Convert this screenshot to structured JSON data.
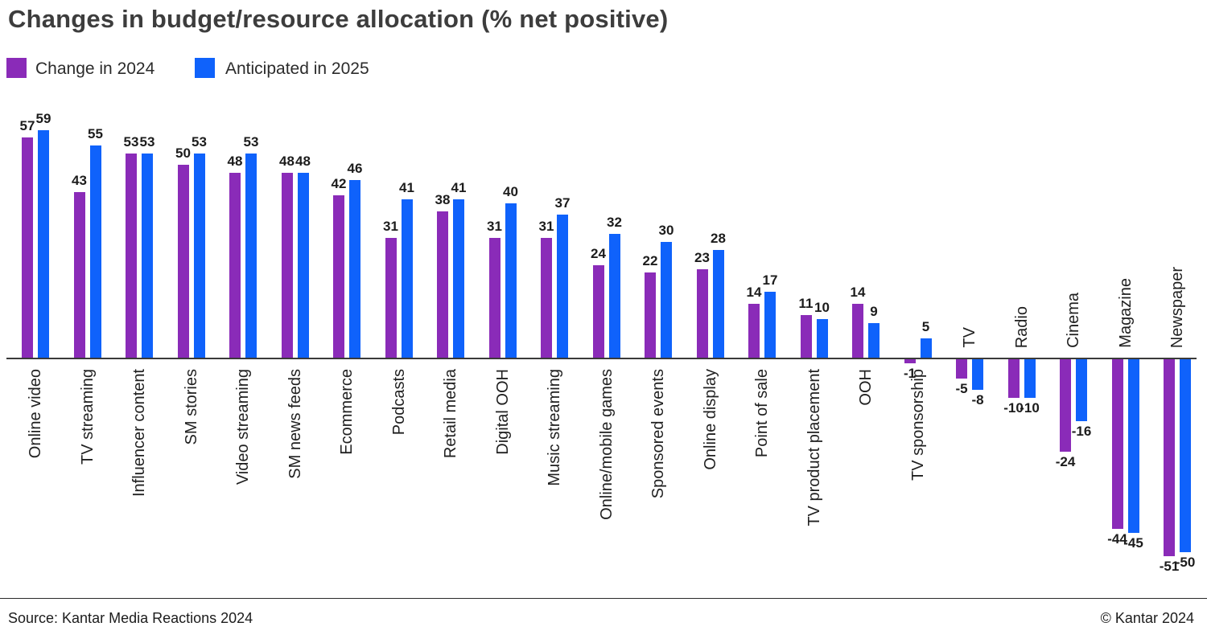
{
  "header": {
    "title": "Changes in budget/resource allocation (% net positive)"
  },
  "legend": {
    "item_2024": "Change in 2024",
    "item_2025": "Anticipated in 2025"
  },
  "chart_data": {
    "type": "bar",
    "title": "Changes in budget/resource allocation (% net positive)",
    "xlabel": "",
    "ylabel": "",
    "ylim": [
      -51,
      59
    ],
    "grid": false,
    "legend_position": "top-left",
    "value_labels": true,
    "categories": [
      "Online video",
      "TV streaming",
      "Influencer content",
      "SM stories",
      "Video streaming",
      "SM news feeds",
      "Ecommerce",
      "Podcasts",
      "Retail media",
      "Digital OOH",
      "Music streaming",
      "Online/mobile games",
      "Sponsored events",
      "Online display",
      "Point of sale",
      "TV product placement",
      "OOH",
      "TV sponsorship",
      "TV",
      "Radio",
      "Cinema",
      "Magazine",
      "Newspaper"
    ],
    "series": [
      {
        "name": "Change in 2024",
        "color": "#8A2BB8",
        "values": [
          57,
          43,
          53,
          50,
          48,
          48,
          42,
          31,
          38,
          31,
          31,
          24,
          22,
          23,
          14,
          11,
          14,
          -1,
          -5,
          -10,
          -24,
          -44,
          -51
        ]
      },
      {
        "name": "Anticipated in 2025",
        "color": "#0F62FB",
        "values": [
          59,
          55,
          53,
          53,
          53,
          48,
          46,
          41,
          41,
          40,
          37,
          32,
          30,
          28,
          17,
          10,
          9,
          5,
          -8,
          -10,
          -16,
          -45,
          -50
        ]
      }
    ]
  },
  "footer": {
    "source": "Source: Kantar Media Reactions 2024",
    "copyright": "© Kantar 2024"
  }
}
